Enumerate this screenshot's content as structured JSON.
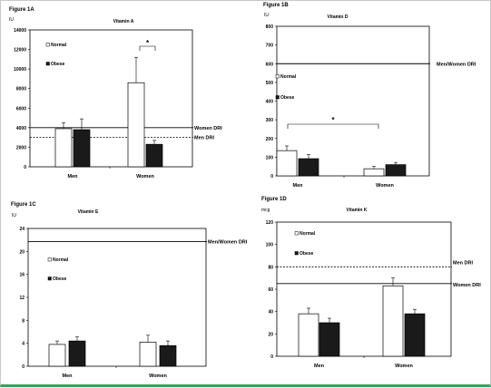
{
  "chart_data": [
    {
      "type": "bar",
      "figure_label": "Figure 1A",
      "title": "Vitamin A",
      "ylabel": "IU",
      "ylim": [
        0,
        14000
      ],
      "yticks": [
        "0",
        "2000",
        "4000",
        "6000",
        "8000",
        "10000",
        "12000",
        "14000"
      ],
      "categories": [
        "Men",
        "Women"
      ],
      "series": [
        {
          "name": "Normal",
          "values": [
            3900,
            8600
          ],
          "errors": [
            600,
            2600
          ],
          "color": "#ffffff"
        },
        {
          "name": "Obese",
          "values": [
            3800,
            2300
          ],
          "errors": [
            1100,
            400
          ],
          "color": "#1a1a1a"
        }
      ],
      "reference_lines": [
        {
          "label": "Women DRI",
          "value": 4000,
          "style": "solid"
        },
        {
          "label": "Men DRI",
          "value": 3000,
          "style": "dashed"
        }
      ],
      "significance": {
        "label": "*",
        "category_index": 1
      },
      "legend": "top-left"
    },
    {
      "type": "bar",
      "figure_label": "Figure 1B",
      "title": "Vitamin D",
      "ylabel": "IU",
      "ylim": [
        0,
        800
      ],
      "yticks": [
        "0",
        "100",
        "200",
        "300",
        "400",
        "500",
        "600",
        "700",
        "800"
      ],
      "categories": [
        "Men",
        "Women"
      ],
      "series": [
        {
          "name": "Normal",
          "values": [
            135,
            38
          ],
          "errors": [
            25,
            12
          ],
          "color": "#ffffff"
        },
        {
          "name": "Obese",
          "values": [
            92,
            60
          ],
          "errors": [
            22,
            12
          ],
          "color": "#1a1a1a"
        }
      ],
      "reference_lines": [
        {
          "label": "Men/Women DRI",
          "value": 600,
          "style": "solid"
        }
      ],
      "significance": {
        "label": "*",
        "between": "Normal"
      },
      "legend": "center-left"
    },
    {
      "type": "bar",
      "figure_label": "Figure 1C",
      "title": "Vitamin E",
      "ylabel": "IU",
      "ylim": [
        0,
        24
      ],
      "yticks": [
        "0",
        "4",
        "8",
        "12",
        "16",
        "20",
        "24"
      ],
      "categories": [
        "Men",
        "Women"
      ],
      "series": [
        {
          "name": "Normal",
          "values": [
            3.8,
            4.2
          ],
          "errors": [
            0.6,
            1.2
          ],
          "color": "#ffffff"
        },
        {
          "name": "Obese",
          "values": [
            4.4,
            3.6
          ],
          "errors": [
            0.7,
            0.8
          ],
          "color": "#1a1a1a"
        }
      ],
      "reference_lines": [
        {
          "label": "Men/Women DRI",
          "value": 21.7,
          "style": "solid"
        }
      ],
      "legend": "center-left"
    },
    {
      "type": "bar",
      "figure_label": "Figure 1D",
      "title": "Vitamin K",
      "ylabel": "mcg",
      "ylim": [
        0,
        120
      ],
      "yticks": [
        "0",
        "20",
        "40",
        "60",
        "80",
        "100",
        "120"
      ],
      "categories": [
        "Men",
        "Women"
      ],
      "series": [
        {
          "name": "Normal",
          "values": [
            38,
            63
          ],
          "errors": [
            5,
            7
          ],
          "color": "#ffffff"
        },
        {
          "name": "Obese",
          "values": [
            30,
            38
          ],
          "errors": [
            4,
            4
          ],
          "color": "#1a1a1a"
        }
      ],
      "reference_lines": [
        {
          "label": "Men DRI",
          "value": 80,
          "style": "dashed"
        },
        {
          "label": "Women DRI",
          "value": 65,
          "style": "solid"
        }
      ],
      "legend": "top-left"
    }
  ]
}
